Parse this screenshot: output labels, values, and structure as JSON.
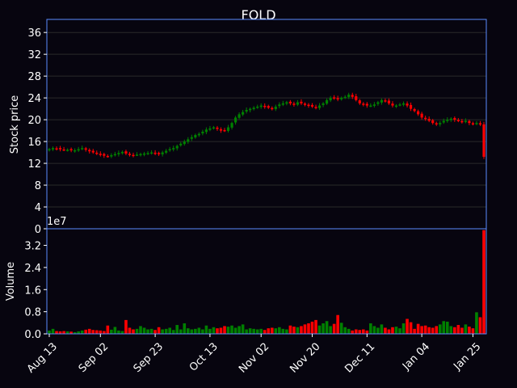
{
  "chart_data": {
    "type": "candlestick",
    "title": "FOLD",
    "price_panel": {
      "ylabel": "Stock price",
      "ylim": [
        0,
        38.4
      ],
      "yticks": [
        0,
        4,
        8,
        12,
        16,
        20,
        24,
        28,
        32,
        36
      ],
      "grid": true
    },
    "volume_panel": {
      "ylabel": "Volume",
      "ylim": [
        0,
        3.8
      ],
      "yticks": [
        0,
        0.8,
        1.6,
        2.4,
        3.2
      ],
      "ytick_labels": [
        "0.0",
        "0.8",
        "1.6",
        "2.4",
        "3.2"
      ],
      "offset_label": "1e7"
    },
    "x_ticks": [
      {
        "index": 0,
        "label": "Aug 13"
      },
      {
        "index": 14,
        "label": "Sep 02"
      },
      {
        "index": 29,
        "label": "Sep 23"
      },
      {
        "index": 44,
        "label": "Oct 13"
      },
      {
        "index": 58,
        "label": "Nov 02"
      },
      {
        "index": 72,
        "label": "Nov 20"
      },
      {
        "index": 87,
        "label": "Dec 11"
      },
      {
        "index": 102,
        "label": "Jan 04"
      },
      {
        "index": 116,
        "label": "Jan 25"
      }
    ],
    "n_days": 120,
    "colors": {
      "up": "#008000",
      "down": "#ff0000",
      "axes": "#5b8cff",
      "grid": "#2a2a2a",
      "background": "#07050f"
    },
    "close_path": [
      14.6,
      14.8,
      14.7,
      14.6,
      14.5,
      14.5,
      14.4,
      14.4,
      14.6,
      14.8,
      14.5,
      14.2,
      14.0,
      13.8,
      13.6,
      13.4,
      13.3,
      13.5,
      13.7,
      13.9,
      14.1,
      13.8,
      13.6,
      13.5,
      13.6,
      13.7,
      13.8,
      13.9,
      14.0,
      13.8,
      13.7,
      14.0,
      14.3,
      14.6,
      14.8,
      15.2,
      15.6,
      16.0,
      16.4,
      16.8,
      17.2,
      17.4,
      17.8,
      18.2,
      18.4,
      18.6,
      18.3,
      18.0,
      18.0,
      18.6,
      19.4,
      20.4,
      21.0,
      21.4,
      21.8,
      22.0,
      22.2,
      22.4,
      22.6,
      22.4,
      22.2,
      22.0,
      22.4,
      22.8,
      23.0,
      23.2,
      23.0,
      22.8,
      23.2,
      23.0,
      22.8,
      22.6,
      22.4,
      22.2,
      22.6,
      23.0,
      23.6,
      24.0,
      24.0,
      23.8,
      24.0,
      24.2,
      24.6,
      24.2,
      23.6,
      23.0,
      22.8,
      22.6,
      22.6,
      22.8,
      23.2,
      23.6,
      23.4,
      23.0,
      22.6,
      22.6,
      22.8,
      23.0,
      22.6,
      22.0,
      21.6,
      21.0,
      20.4,
      20.2,
      19.8,
      19.4,
      19.2,
      19.4,
      19.8,
      20.0,
      20.2,
      20.0,
      19.8,
      19.6,
      19.8,
      19.4,
      19.2,
      19.4,
      19.2,
      13.2
    ],
    "volume_path": [
      0.12,
      0.18,
      0.1,
      0.09,
      0.1,
      0.09,
      0.08,
      0.06,
      0.09,
      0.12,
      0.15,
      0.18,
      0.14,
      0.13,
      0.12,
      0.1,
      0.3,
      0.15,
      0.25,
      0.12,
      0.1,
      0.5,
      0.22,
      0.16,
      0.18,
      0.28,
      0.22,
      0.16,
      0.18,
      0.14,
      0.24,
      0.16,
      0.18,
      0.22,
      0.14,
      0.32,
      0.16,
      0.38,
      0.2,
      0.16,
      0.18,
      0.22,
      0.16,
      0.3,
      0.18,
      0.24,
      0.2,
      0.22,
      0.28,
      0.26,
      0.3,
      0.22,
      0.28,
      0.34,
      0.16,
      0.2,
      0.18,
      0.16,
      0.18,
      0.14,
      0.2,
      0.22,
      0.2,
      0.24,
      0.18,
      0.16,
      0.3,
      0.26,
      0.24,
      0.28,
      0.34,
      0.38,
      0.44,
      0.5,
      0.3,
      0.38,
      0.46,
      0.28,
      0.36,
      0.68,
      0.4,
      0.24,
      0.18,
      0.12,
      0.16,
      0.14,
      0.16,
      0.12,
      0.38,
      0.28,
      0.22,
      0.34,
      0.22,
      0.16,
      0.24,
      0.26,
      0.2,
      0.38,
      0.54,
      0.42,
      0.18,
      0.36,
      0.28,
      0.3,
      0.24,
      0.22,
      0.28,
      0.34,
      0.46,
      0.44,
      0.28,
      0.24,
      0.32,
      0.22,
      0.34,
      0.26,
      0.2,
      0.78,
      0.6,
      3.75
    ]
  }
}
